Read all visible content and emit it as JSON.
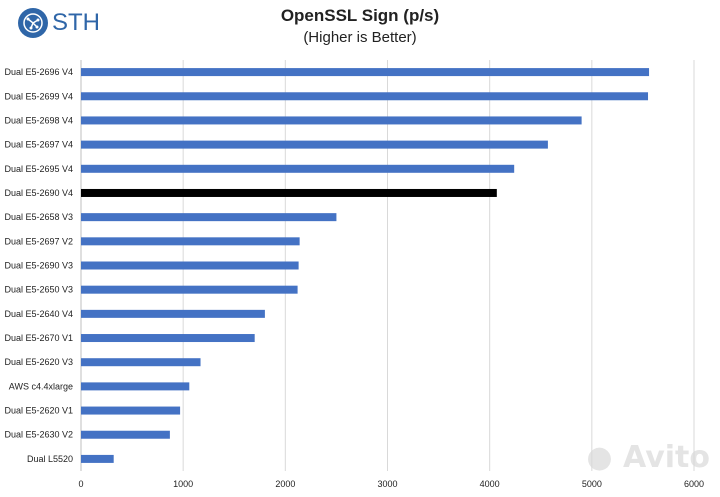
{
  "brand": {
    "name": "STH",
    "icon": "sth-logo-icon",
    "color": "#2f66a8"
  },
  "watermark": {
    "text": "Avito",
    "icon": "avito-logo-icon"
  },
  "chart_data": {
    "type": "bar",
    "orientation": "horizontal",
    "title": "OpenSSL Sign (p/s)",
    "subtitle": "(Higher is Better)",
    "xlabel": "",
    "ylabel": "",
    "xlim": [
      0,
      6000
    ],
    "xticks": [
      0,
      1000,
      2000,
      3000,
      4000,
      5000,
      6000
    ],
    "grid": true,
    "legend": "none",
    "bar_color": "#4472c4",
    "highlight_color": "#000000",
    "highlight_category": "Dual E5-2690 V4",
    "categories": [
      "Dual E5-2696 V4",
      "Dual E5-2699 V4",
      "Dual E5-2698 V4",
      "Dual E5-2697 V4",
      "Dual E5-2695 V4",
      "Dual E5-2690 V4",
      "Dual E5-2658 V3",
      "Dual E5-2697 V2",
      "Dual E5-2690 V3",
      "Dual E5-2650 V3",
      "Dual E5-2640 V4",
      "Dual E5-2670 V1",
      "Dual E5-2620 V3",
      "AWS c4.4xlarge",
      "Dual E5-2620 V1",
      "Dual E5-2630 V2",
      "Dual L5520"
    ],
    "values": [
      5560,
      5550,
      4900,
      4570,
      4240,
      4070,
      2500,
      2140,
      2130,
      2120,
      1800,
      1700,
      1170,
      1060,
      970,
      870,
      320
    ]
  }
}
